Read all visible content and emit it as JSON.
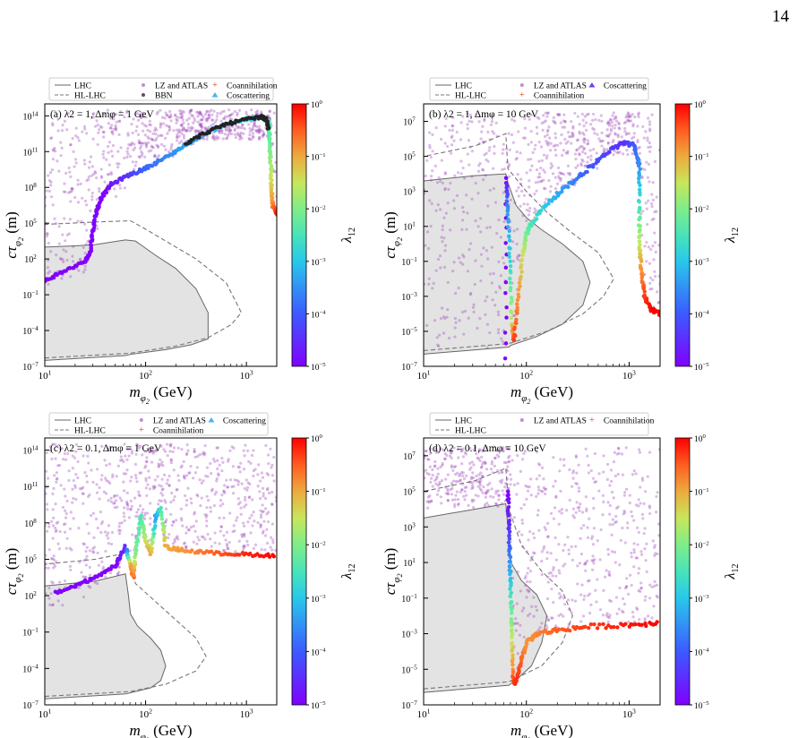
{
  "page_number": "14",
  "colorbar": {
    "label": "λ12",
    "ticks": [
      "10^0",
      "10^-1",
      "10^-2",
      "10^-3",
      "10^-4",
      "10^-5"
    ]
  },
  "xaxis": {
    "label": "m_{φ2} (GeV)",
    "ticks": [
      "10^1",
      "10^2",
      "10^3"
    ]
  },
  "yaxis": {
    "label": "cτ_{φ2} (m)"
  },
  "chart_data": [
    {
      "type": "scatter",
      "panel_label": "(a) λ2 = 1, Δmφ = 1 GeV",
      "legend": [
        "LHC",
        "HL-LHC",
        "LZ and ATLAS",
        "BBN",
        "Coannihilation",
        "Coscattering"
      ],
      "xlim": [
        10,
        2000
      ],
      "ylim_log10": [
        -7,
        15
      ],
      "log_x": true,
      "log_y": true,
      "y_ticks_log10": [
        -7,
        -4,
        -1,
        2,
        5,
        8,
        11,
        14
      ],
      "lhc_excluded_region_log10": [
        [
          1,
          -6.5
        ],
        [
          1.8,
          -6.1
        ],
        [
          1.85,
          -6.0
        ],
        [
          2.2,
          -5.6
        ],
        [
          2.45,
          -5.2
        ],
        [
          2.62,
          -4.7
        ],
        [
          2.62,
          -2.5
        ],
        [
          2.5,
          -0.5
        ],
        [
          2.3,
          1.2
        ],
        [
          2.1,
          2.3
        ],
        [
          1.95,
          3.2
        ],
        [
          1.9,
          3.5
        ],
        [
          1.8,
          3.6
        ],
        [
          1.5,
          3.2
        ],
        [
          1.3,
          3.1
        ],
        [
          1.0,
          3.0
        ]
      ],
      "hl_lhc_curve_log10": [
        [
          1,
          -6.3
        ],
        [
          1.85,
          -5.9
        ],
        [
          2.3,
          -5.3
        ],
        [
          2.62,
          -4.6
        ],
        [
          2.85,
          -3.5
        ],
        [
          2.95,
          -2.5
        ],
        [
          2.8,
          0
        ],
        [
          2.5,
          2
        ],
        [
          2.2,
          3.5
        ],
        [
          2.0,
          4.5
        ],
        [
          1.85,
          5.2
        ],
        [
          1.5,
          5.1
        ],
        [
          1.0,
          4.9
        ]
      ],
      "series": [
        {
          "name": "Coscattering",
          "curve_log10": [
            [
              1.0,
              0.2
            ],
            [
              1.2,
              1.0
            ],
            [
              1.4,
              1.8
            ],
            [
              1.45,
              2.5
            ],
            [
              1.47,
              4.0
            ],
            [
              1.5,
              5.5
            ],
            [
              1.55,
              7.0
            ],
            [
              1.65,
              8.2
            ],
            [
              1.8,
              8.9
            ],
            [
              2.0,
              9.6
            ],
            [
              2.2,
              10.5
            ],
            [
              2.4,
              11.6
            ],
            [
              2.6,
              12.6
            ],
            [
              2.8,
              13.3
            ],
            [
              3.0,
              13.7
            ],
            [
              3.15,
              13.9
            ],
            [
              3.22,
              13.5
            ],
            [
              3.23,
              12.0
            ],
            [
              3.24,
              10.0
            ],
            [
              3.25,
              8.0
            ],
            [
              3.26,
              6.5
            ],
            [
              3.3,
              5.8
            ],
            [
              3.33,
              5.8
            ]
          ],
          "lambda12_log10": [
            -5,
            -5,
            -5,
            -5,
            -5,
            -5,
            -5,
            -4.8,
            -4.5,
            -3.9,
            -3.6,
            -3.3,
            -3.2,
            -3.0,
            -3.0,
            -2.9,
            -2.5,
            -2.2,
            -1.8,
            -1.3,
            -0.7,
            -0.2,
            0
          ]
        },
        {
          "name": "BBN",
          "curve_log10": [
            [
              2.4,
              11.7
            ],
            [
              2.6,
              12.6
            ],
            [
              2.8,
              13.3
            ],
            [
              3.0,
              13.7
            ],
            [
              3.15,
              13.9
            ],
            [
              3.2,
              13.7
            ],
            [
              3.22,
              12.8
            ]
          ]
        }
      ]
    },
    {
      "type": "scatter",
      "panel_label": "(b) λ2 = 1, Δmφ = 10 GeV",
      "legend": [
        "LHC",
        "HL-LHC",
        "LZ and ATLAS",
        "Coannihilation",
        "Coscattering"
      ],
      "xlim": [
        10,
        2000
      ],
      "ylim_log10": [
        -7,
        8
      ],
      "log_x": true,
      "log_y": true,
      "y_ticks_log10": [
        -7,
        -5,
        -3,
        -1,
        1,
        3,
        5,
        7
      ],
      "lhc_excluded_region_log10": [
        [
          1,
          -6.3
        ],
        [
          1.83,
          -5.9
        ],
        [
          1.85,
          -5.8
        ],
        [
          2.1,
          -5.3
        ],
        [
          2.35,
          -4.6
        ],
        [
          2.55,
          -3.5
        ],
        [
          2.62,
          -2.2
        ],
        [
          2.55,
          -1.0
        ],
        [
          2.35,
          0.0
        ],
        [
          2.15,
          0.8
        ],
        [
          2.0,
          1.5
        ],
        [
          1.9,
          2.2
        ],
        [
          1.82,
          3.5
        ],
        [
          1.8,
          4.0
        ],
        [
          1.5,
          3.9
        ],
        [
          1.0,
          3.6
        ]
      ],
      "hl_lhc_curve_log10": [
        [
          1,
          -6.1
        ],
        [
          1.83,
          -5.7
        ],
        [
          2.2,
          -5.0
        ],
        [
          2.55,
          -4.0
        ],
        [
          2.75,
          -3.0
        ],
        [
          2.85,
          -2.0
        ],
        [
          2.7,
          -0.5
        ],
        [
          2.45,
          0.6
        ],
        [
          2.2,
          1.8
        ],
        [
          2.0,
          3.0
        ],
        [
          1.82,
          4.3
        ],
        [
          1.8,
          6.3
        ],
        [
          1.5,
          5.6
        ],
        [
          1.0,
          5.0
        ]
      ],
      "series": [
        {
          "name": "Coannihilation",
          "curve_log10": [
            [
              1.8,
              -6.5
            ],
            [
              1.8,
              3.8
            ],
            [
              1.82,
              2.0
            ],
            [
              1.84,
              -1.0
            ],
            [
              1.86,
              -4.5
            ],
            [
              1.88,
              -5.5
            ],
            [
              1.92,
              -3.0
            ],
            [
              1.97,
              -0.5
            ],
            [
              2.0,
              0.5
            ],
            [
              2.05,
              1.2
            ],
            [
              2.2,
              2.3
            ],
            [
              2.4,
              3.3
            ],
            [
              2.6,
              4.3
            ],
            [
              2.8,
              5.3
            ],
            [
              2.95,
              5.8
            ],
            [
              3.05,
              5.6
            ],
            [
              3.1,
              4.5
            ],
            [
              3.1,
              2.0
            ],
            [
              3.1,
              0.0
            ],
            [
              3.12,
              -1.5
            ],
            [
              3.15,
              -3.0
            ],
            [
              3.22,
              -3.8
            ],
            [
              3.3,
              -4.0
            ]
          ],
          "lambda12_log10": [
            -5,
            -5,
            -3.5,
            -2.8,
            -1.5,
            -0.3,
            -0.8,
            -1.5,
            -2.0,
            -2.5,
            -3.0,
            -3.5,
            -4.0,
            -4.3,
            -4.5,
            -4.0,
            -3.5,
            -2.5,
            -1.5,
            -0.8,
            -0.3,
            0,
            0
          ]
        }
      ]
    },
    {
      "type": "scatter",
      "panel_label": "(c) λ2 = 0.1, Δmφ = 1 GeV",
      "legend": [
        "LHC",
        "HL-LHC",
        "LZ and ATLAS",
        "Coannihilation",
        "Coscattering"
      ],
      "xlim": [
        10,
        2000
      ],
      "ylim_log10": [
        -7,
        15
      ],
      "log_x": true,
      "log_y": true,
      "y_ticks_log10": [
        -7,
        -4,
        -1,
        2,
        5,
        8,
        11,
        14
      ],
      "lhc_excluded_region_log10": [
        [
          1,
          -6.5
        ],
        [
          1.8,
          -6.1
        ],
        [
          1.85,
          -6.0
        ],
        [
          2.05,
          -5.6
        ],
        [
          2.15,
          -5.0
        ],
        [
          2.2,
          -3.8
        ],
        [
          2.15,
          -2.5
        ],
        [
          2.05,
          -1.5
        ],
        [
          1.92,
          -0.5
        ],
        [
          1.85,
          0.5
        ],
        [
          1.83,
          2.0
        ],
        [
          1.8,
          3.8
        ],
        [
          1.5,
          3.2
        ],
        [
          1.0,
          2.8
        ]
      ],
      "hl_lhc_curve_log10": [
        [
          1,
          -6.3
        ],
        [
          1.85,
          -5.9
        ],
        [
          2.2,
          -5.3
        ],
        [
          2.5,
          -4.2
        ],
        [
          2.6,
          -3.0
        ],
        [
          2.5,
          -1.5
        ],
        [
          2.3,
          0.0
        ],
        [
          2.1,
          1.5
        ],
        [
          1.9,
          3.0
        ],
        [
          1.8,
          5.5
        ],
        [
          1.5,
          5.0
        ],
        [
          1.0,
          4.6
        ]
      ],
      "series": [
        {
          "name": "Coannihilation",
          "curve_log10": [
            [
              1.1,
              2.2
            ],
            [
              1.3,
              2.8
            ],
            [
              1.5,
              3.5
            ],
            [
              1.7,
              4.5
            ],
            [
              1.8,
              6.0
            ],
            [
              1.85,
              4.5
            ],
            [
              1.88,
              3.5
            ],
            [
              1.9,
              5.5
            ],
            [
              1.95,
              8.5
            ],
            [
              2.0,
              6.5
            ],
            [
              2.05,
              5.5
            ],
            [
              2.1,
              8.5
            ],
            [
              2.15,
              9.2
            ],
            [
              2.2,
              6.0
            ],
            [
              2.4,
              5.7
            ],
            [
              2.7,
              5.5
            ],
            [
              3.0,
              5.4
            ],
            [
              3.3,
              5.3
            ]
          ],
          "lambda12_log10": [
            -5,
            -5,
            -5,
            -5,
            -4.5,
            -1,
            -0.5,
            -2,
            -2.5,
            -1.5,
            -1.0,
            -3.5,
            -2.5,
            -1.0,
            -0.8,
            -0.5,
            -0.2,
            0
          ]
        }
      ]
    },
    {
      "type": "scatter",
      "panel_label": "(d) λ2 = 0.1, Δmφ = 10 GeV",
      "legend": [
        "LHC",
        "HL-LHC",
        "LZ and ATLAS",
        "Coannihilation"
      ],
      "xlim": [
        10,
        2000
      ],
      "ylim_log10": [
        -7,
        8
      ],
      "log_x": true,
      "log_y": true,
      "y_ticks_log10": [
        -7,
        -5,
        -3,
        -1,
        1,
        3,
        5,
        7
      ],
      "lhc_excluded_region_log10": [
        [
          1,
          -6.3
        ],
        [
          1.83,
          -5.9
        ],
        [
          1.9,
          -5.6
        ],
        [
          2.05,
          -4.8
        ],
        [
          2.15,
          -3.5
        ],
        [
          2.2,
          -2.0
        ],
        [
          2.1,
          -0.8
        ],
        [
          1.95,
          0.0
        ],
        [
          1.85,
          1.0
        ],
        [
          1.82,
          3.0
        ],
        [
          1.8,
          4.3
        ],
        [
          1.5,
          4.0
        ],
        [
          1.0,
          3.5
        ]
      ],
      "hl_lhc_curve_log10": [
        [
          1,
          -6.1
        ],
        [
          1.83,
          -5.7
        ],
        [
          2.15,
          -4.8
        ],
        [
          2.35,
          -3.5
        ],
        [
          2.45,
          -2.0
        ],
        [
          2.35,
          -0.6
        ],
        [
          2.15,
          0.5
        ],
        [
          1.95,
          2.0
        ],
        [
          1.83,
          4.0
        ],
        [
          1.8,
          6.3
        ],
        [
          1.5,
          5.6
        ],
        [
          1.0,
          5.0
        ]
      ],
      "series": [
        {
          "name": "Coannihilation",
          "curve_log10": [
            [
              1.82,
              5.0
            ],
            [
              1.83,
              3.0
            ],
            [
              1.84,
              1.0
            ],
            [
              1.85,
              -1.0
            ],
            [
              1.86,
              -3.5
            ],
            [
              1.87,
              -5.5
            ],
            [
              1.9,
              -5.8
            ],
            [
              1.95,
              -4.5
            ],
            [
              2.0,
              -3.5
            ],
            [
              2.1,
              -3.0
            ],
            [
              2.3,
              -2.8
            ],
            [
              2.6,
              -2.6
            ],
            [
              3.0,
              -2.5
            ],
            [
              3.3,
              -2.4
            ]
          ],
          "lambda12_log10": [
            -5,
            -4.5,
            -3.5,
            -2.5,
            -1.5,
            -0.5,
            -0.2,
            -0.5,
            -0.8,
            -0.7,
            -0.5,
            -0.3,
            -0.1,
            0
          ]
        }
      ]
    }
  ]
}
